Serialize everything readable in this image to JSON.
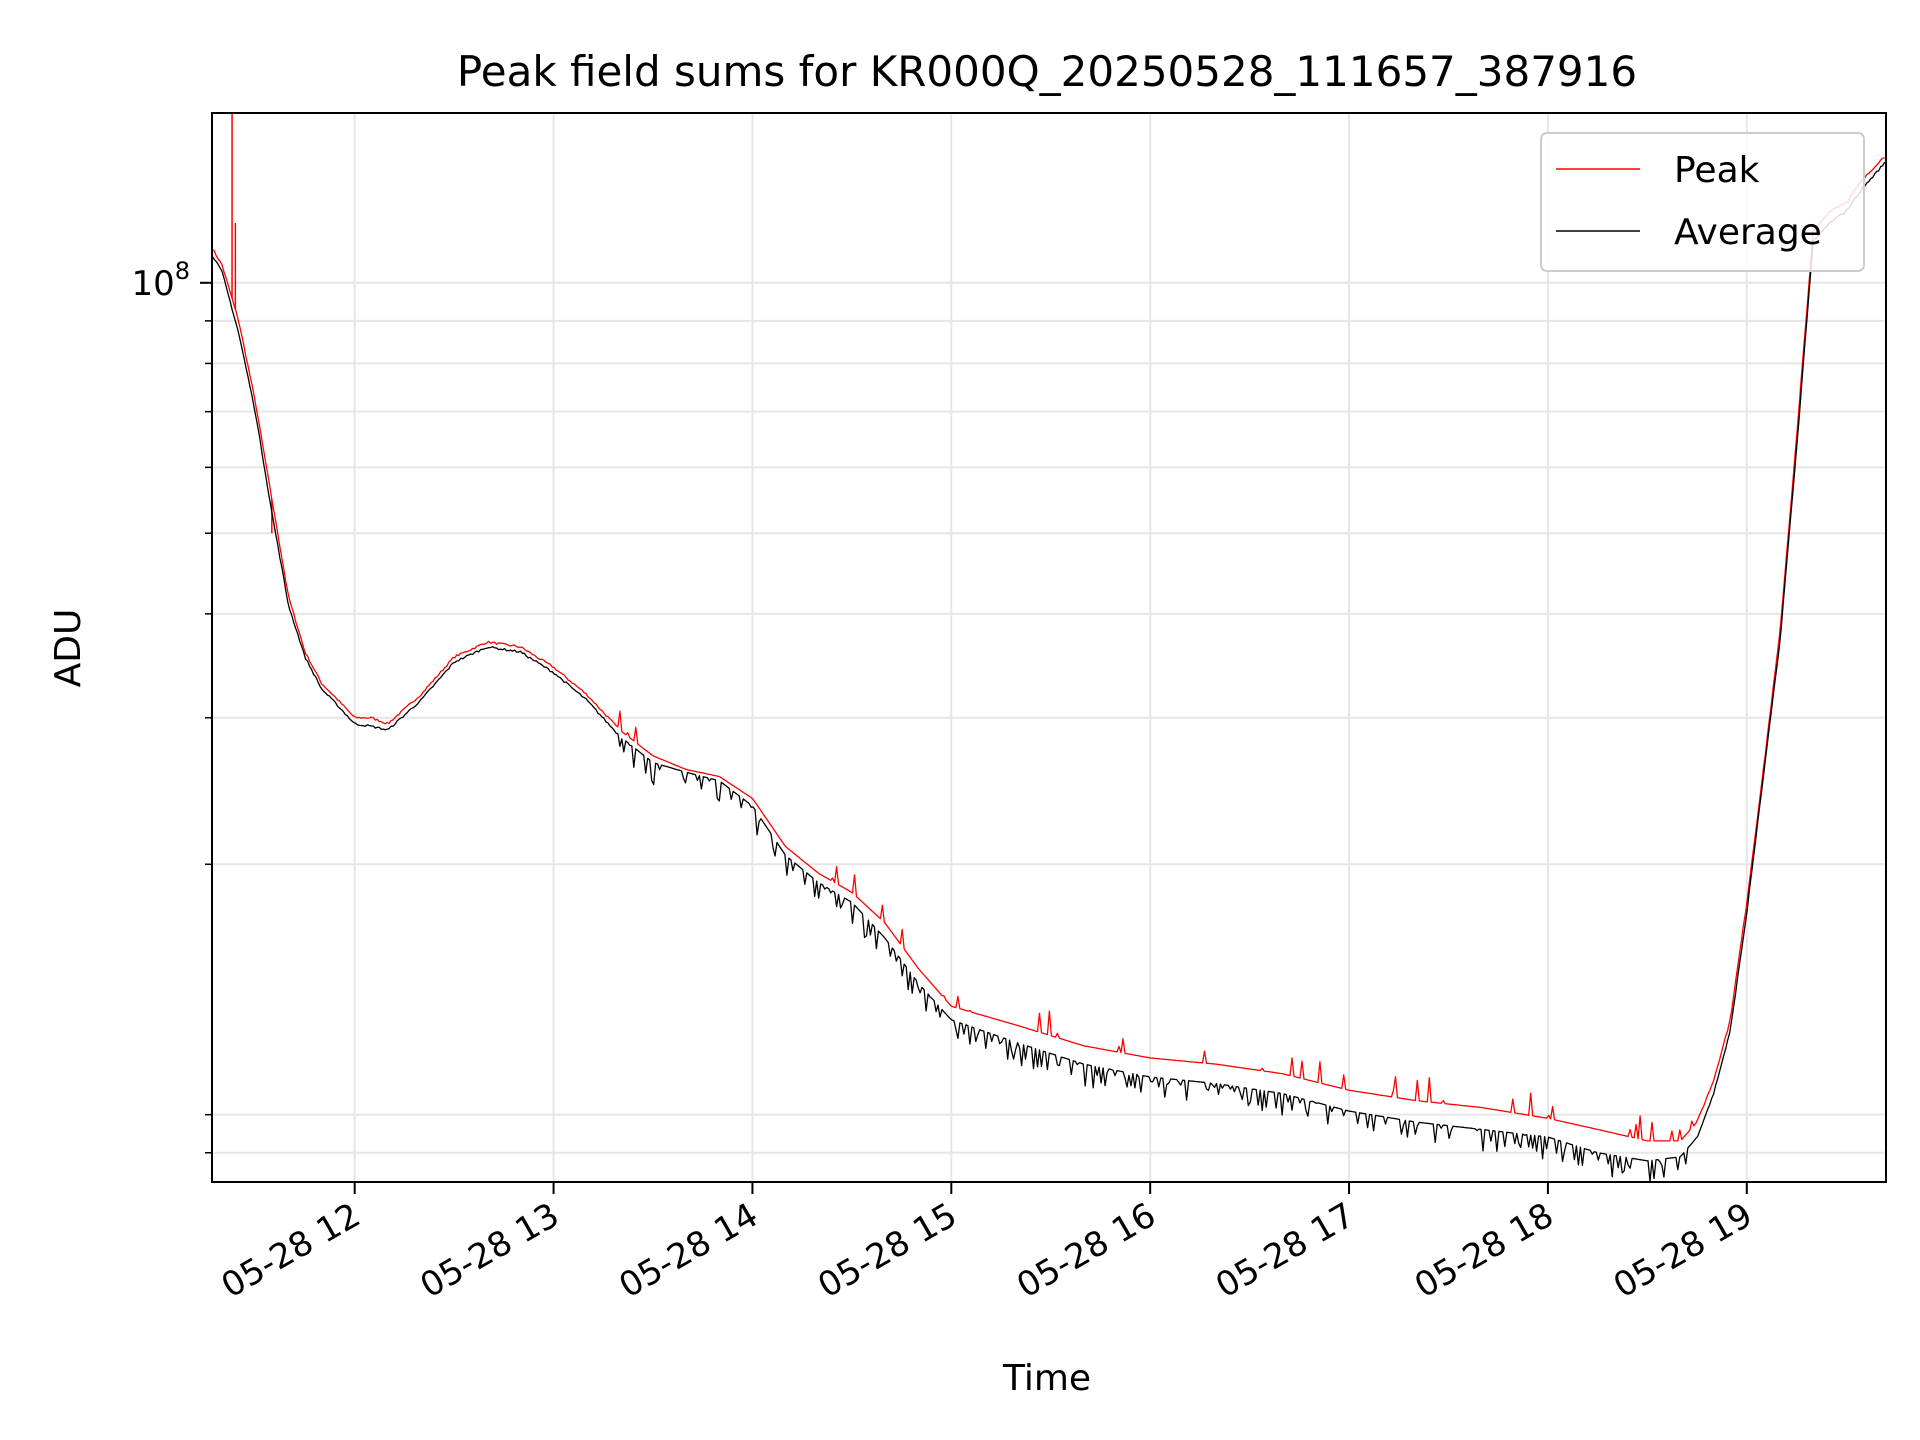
{
  "chart_data": {
    "type": "line",
    "title": "Peak field sums for KR000Q_20250528_111657_387916",
    "xlabel": "Time",
    "ylabel": "ADU",
    "yscale": "log",
    "grid": true,
    "legend_position": "top-right",
    "xlim": [
      "2025-05-28 11:16:57",
      "2025-05-28 19:42:00"
    ],
    "ylim": [
      8300000,
      160000000
    ],
    "x_ticks": [
      "05-28 12",
      "05-28 13",
      "05-28 14",
      "05-28 15",
      "05-28 16",
      "05-28 17",
      "05-28 18",
      "05-28 19"
    ],
    "x_tick_times": [
      "2025-05-28 12:00",
      "2025-05-28 13:00",
      "2025-05-28 14:00",
      "2025-05-28 15:00",
      "2025-05-28 16:00",
      "2025-05-28 17:00",
      "2025-05-28 18:00",
      "2025-05-28 19:00"
    ],
    "y_major_ticks": [
      {
        "value": 100000000,
        "base": "10",
        "exponent": "8"
      }
    ],
    "y_minor_ticks": [
      9000000,
      10000000,
      20000000,
      30000000,
      40000000,
      50000000,
      60000000,
      70000000,
      80000000,
      90000000,
      200000000
    ],
    "x": [
      "11:17",
      "11:20",
      "11:25",
      "11:30",
      "11:35",
      "11:40",
      "11:45",
      "11:50",
      "11:55",
      "12:00",
      "12:05",
      "12:10",
      "12:20",
      "12:30",
      "12:40",
      "12:50",
      "13:00",
      "13:10",
      "13:20",
      "13:30",
      "13:40",
      "13:50",
      "14:00",
      "14:10",
      "14:20",
      "14:30",
      "14:40",
      "14:50",
      "15:00",
      "15:20",
      "15:40",
      "16:00",
      "16:20",
      "16:40",
      "17:00",
      "17:20",
      "17:40",
      "18:00",
      "18:15",
      "18:30",
      "18:40",
      "18:45",
      "18:50",
      "18:55",
      "19:00",
      "19:05",
      "19:10",
      "19:15",
      "19:20",
      "19:25",
      "19:30",
      "19:35",
      "19:40",
      "19:42"
    ],
    "series": [
      {
        "name": "Peak",
        "color": "#ff0000",
        "values": [
          110000000,
          105000000,
          90000000,
          72000000,
          55000000,
          42000000,
          36000000,
          33000000,
          31500000,
          30000000,
          30000000,
          29500000,
          32000000,
          35500000,
          37000000,
          36500000,
          34500000,
          32000000,
          29000000,
          27000000,
          26000000,
          25500000,
          24000000,
          21000000,
          19500000,
          18500000,
          17000000,
          15000000,
          13500000,
          12800000,
          12100000,
          11700000,
          11500000,
          11200000,
          10700000,
          10400000,
          10200000,
          9900000,
          9600000,
          9300000,
          9300000,
          9800000,
          11000000,
          13000000,
          18000000,
          26000000,
          38000000,
          65000000,
          115000000,
          122000000,
          125000000,
          133000000,
          140000000,
          142000000
        ],
        "spikes": [
          {
            "x": "11:23",
            "value": 160000000
          },
          {
            "x": "11:24",
            "value": 118000000
          },
          {
            "x": "11:35",
            "value": 50000000
          }
        ]
      },
      {
        "name": "Average",
        "color": "#000000",
        "values": [
          108000000,
          103000000,
          87000000,
          70000000,
          53000000,
          41000000,
          35500000,
          32500000,
          31000000,
          29500000,
          29300000,
          29000000,
          31500000,
          35000000,
          36500000,
          36000000,
          34000000,
          31500000,
          28500000,
          26500000,
          25800000,
          25200000,
          23500000,
          20500000,
          19000000,
          18000000,
          16300000,
          14400000,
          13000000,
          12200000,
          11500000,
          11100000,
          10900000,
          10600000,
          10100000,
          9800000,
          9600000,
          9400000,
          9000000,
          8800000,
          8900000,
          9400000,
          10600000,
          12600000,
          17500000,
          25500000,
          37000000,
          63000000,
          112000000,
          118000000,
          122000000,
          130000000,
          137000000,
          140000000
        ]
      }
    ]
  }
}
